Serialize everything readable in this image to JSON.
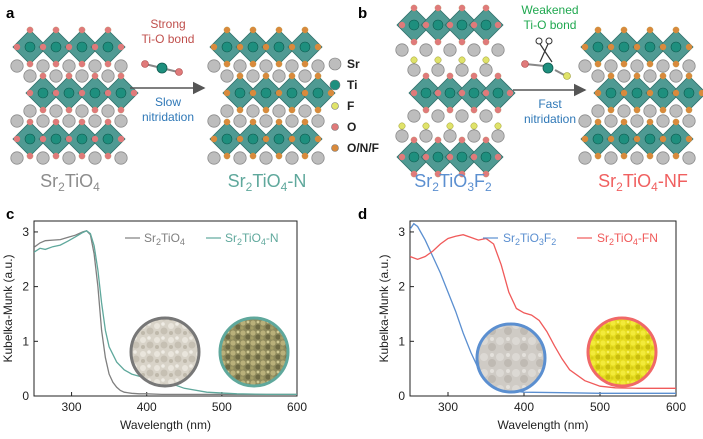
{
  "panel_labels": {
    "a": "a",
    "b": "b",
    "c": "c",
    "d": "d"
  },
  "colors": {
    "octa": "#4f9a93",
    "octa_dark": "#2f6f6a",
    "sr": "#bdbdbd",
    "ti": "#1e8f7e",
    "f": "#e0e36a",
    "o": "#e07a7a",
    "onf": "#d98a3c",
    "strong": "#c0504d",
    "weakened": "#1fa84f",
    "blue_text": "#2f78b7",
    "c_series1": "#7f7f7f",
    "c_series2": "#5fa89c",
    "d_series1": "#5b8fd0",
    "d_series2": "#f05a5a",
    "cap_gray": "#8c8c8c",
    "cap_teal": "#5fa89c",
    "cap_blue": "#5b8fd0",
    "cap_red": "#f06060"
  },
  "panel_a": {
    "arrow_top_1": "Strong",
    "arrow_top_2": "Ti-O bond",
    "arrow_bottom_1": "Slow",
    "arrow_bottom_2": "nitridation",
    "caption_left": {
      "main": "Sr",
      "s1": "2",
      "mid": "TiO",
      "s2": "4"
    },
    "caption_right": {
      "main": "Sr",
      "s1": "2",
      "mid": "TiO",
      "s2": "4",
      "suffix": "-N"
    }
  },
  "legend": {
    "items": [
      {
        "label": "Sr",
        "color_key": "sr"
      },
      {
        "label": "Ti",
        "color_key": "ti"
      },
      {
        "label": "F",
        "color_key": "f"
      },
      {
        "label": "O",
        "color_key": "o"
      },
      {
        "label": "O/N/F",
        "color_key": "onf"
      }
    ]
  },
  "panel_b": {
    "arrow_top_1": "Weakened",
    "arrow_top_2": "Ti-O bond",
    "arrow_bottom_1": "Fast",
    "arrow_bottom_2": "nitridation",
    "caption_left": {
      "main": "Sr",
      "s1": "2",
      "mid": "TiO",
      "s2": "3",
      "tail": "F",
      "s3": "2"
    },
    "caption_right": {
      "main": "Sr",
      "s1": "2",
      "mid": "TiO",
      "s2": "4",
      "suffix": "-NF"
    }
  },
  "chart_data": [
    {
      "panel": "c",
      "type": "line",
      "xlabel": "Wavelength (nm)",
      "ylabel": "Kubelka-Munk (a.u.)",
      "xlim": [
        250,
        600
      ],
      "ylim": [
        0,
        3.2
      ],
      "xticks": [
        "300",
        "400",
        "500",
        "600"
      ],
      "yticks": [
        "0",
        "1",
        "2",
        "3"
      ],
      "xtick_values": [
        300,
        400,
        500,
        600
      ],
      "ytick_values": [
        0,
        1,
        2,
        3
      ],
      "legend": [
        "Sr2TiO4",
        "Sr2TiO4-N"
      ],
      "series": [
        {
          "name": "Sr2TiO4",
          "color_key": "c_series1",
          "x": [
            250,
            258,
            265,
            275,
            285,
            295,
            305,
            315,
            320,
            325,
            330,
            335,
            340,
            345,
            350,
            355,
            360,
            365,
            370,
            380,
            390,
            400,
            420,
            450,
            500,
            600
          ],
          "y": [
            2.72,
            2.8,
            2.84,
            2.85,
            2.86,
            2.9,
            2.94,
            3.0,
            3.02,
            2.95,
            2.6,
            2.0,
            1.2,
            0.7,
            0.4,
            0.25,
            0.16,
            0.1,
            0.07,
            0.05,
            0.04,
            0.04,
            0.03,
            0.03,
            0.03,
            0.03
          ]
        },
        {
          "name": "Sr2TiO4-N",
          "color_key": "c_series2",
          "x": [
            250,
            258,
            265,
            275,
            285,
            295,
            305,
            315,
            320,
            325,
            330,
            335,
            340,
            345,
            350,
            360,
            370,
            380,
            390,
            400,
            410,
            420,
            430,
            450,
            480,
            520,
            560,
            600
          ],
          "y": [
            2.63,
            2.7,
            2.68,
            2.73,
            2.76,
            2.83,
            2.91,
            2.99,
            3.02,
            2.97,
            2.75,
            2.3,
            1.7,
            1.2,
            0.9,
            0.62,
            0.48,
            0.4,
            0.36,
            0.34,
            0.33,
            0.3,
            0.24,
            0.14,
            0.07,
            0.04,
            0.03,
            0.03
          ]
        }
      ]
    },
    {
      "panel": "d",
      "type": "line",
      "xlabel": "Wavelength (nm)",
      "ylabel": "Kubelka-Munk (a.u.)",
      "xlim": [
        250,
        600
      ],
      "ylim": [
        0,
        3.2
      ],
      "xticks": [
        "300",
        "400",
        "500",
        "600"
      ],
      "yticks": [
        "0",
        "1",
        "2",
        "3"
      ],
      "xtick_values": [
        300,
        400,
        500,
        600
      ],
      "ytick_values": [
        0,
        1,
        2,
        3
      ],
      "legend": [
        "Sr2TiO3F2",
        "Sr2TiO4-FN"
      ],
      "series": [
        {
          "name": "Sr2TiO3F2",
          "color_key": "d_series1",
          "x": [
            250,
            255,
            260,
            270,
            280,
            290,
            300,
            310,
            320,
            330,
            340,
            350,
            360,
            380,
            400,
            450,
            500,
            600
          ],
          "y": [
            3.05,
            3.15,
            3.1,
            2.85,
            2.55,
            2.25,
            1.9,
            1.55,
            1.15,
            0.8,
            0.5,
            0.3,
            0.18,
            0.1,
            0.07,
            0.06,
            0.05,
            0.05
          ]
        },
        {
          "name": "Sr2TiO4-FN",
          "color_key": "d_series2",
          "x": [
            250,
            260,
            270,
            280,
            290,
            300,
            310,
            320,
            330,
            340,
            350,
            360,
            370,
            380,
            390,
            400,
            410,
            420,
            430,
            440,
            450,
            460,
            480,
            500,
            520,
            550,
            600
          ],
          "y": [
            2.55,
            2.5,
            2.55,
            2.65,
            2.78,
            2.88,
            2.92,
            2.95,
            2.9,
            2.85,
            2.88,
            2.78,
            2.4,
            1.9,
            1.6,
            1.52,
            1.48,
            1.38,
            1.18,
            0.92,
            0.68,
            0.48,
            0.28,
            0.18,
            0.15,
            0.14,
            0.14
          ]
        }
      ]
    }
  ],
  "legend_c": [
    {
      "main": "Sr",
      "s1": "2",
      "mid": "TiO",
      "s2": "4"
    },
    {
      "main": "Sr",
      "s1": "2",
      "mid": "TiO",
      "s2": "4",
      "suffix": "-N"
    }
  ],
  "legend_d": [
    {
      "main": "Sr",
      "s1": "2",
      "mid": "TiO",
      "s2": "3",
      "tail": "F",
      "s3": "2"
    },
    {
      "main": "Sr",
      "s1": "2",
      "mid": "TiO",
      "s2": "4",
      "suffix": "-FN"
    }
  ]
}
